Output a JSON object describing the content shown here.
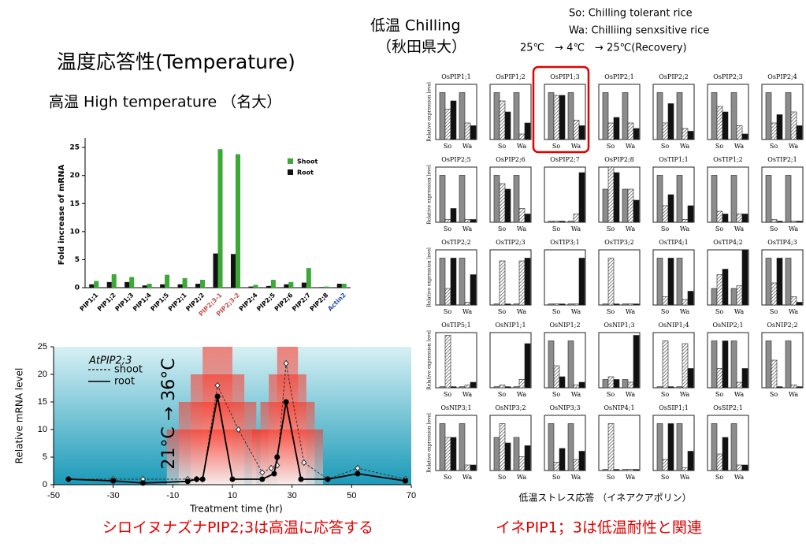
{
  "slide": {
    "title": "温度応答性(Temperature)",
    "subtitle": "高温 High temperature （名大）",
    "left_caption": "シロイヌナズナPIP2;3は高温に応答する",
    "right_caption": "イネPIP1；3は低温耐性と関連",
    "chilling": "低温 Chilling",
    "chilling_source": "（秋田県大）",
    "so_note": "So:  Chilling tolerant rice",
    "wa_note": "Wa:  Chilliing senxsitive rice",
    "treatment": "25℃　→ 4℃　→ 25℃(Recovery)"
  },
  "chart_data": [
    {
      "type": "bar",
      "y_label": "Fold increase of mRNA",
      "categories": [
        "PIP1;1",
        "PIP1;2",
        "PIP1;3",
        "PIP1;4",
        "PIP1;5",
        "PIP2;1",
        "PIP2;2",
        "PIP2;3-1",
        "PIP2;3-2",
        "PIP2;4",
        "PIP2;5",
        "PIP2;6",
        "PIP2;7",
        "PIP2;8",
        "Actin2"
      ],
      "category_colors": [
        "#000",
        "#000",
        "#000",
        "#000",
        "#000",
        "#000",
        "#000",
        "#c0504d",
        "#c0504d",
        "#000",
        "#000",
        "#000",
        "#000",
        "#000",
        "#1f4ea8"
      ],
      "series": [
        {
          "name": "Shoot",
          "color": "#3aa935",
          "values": [
            1.2,
            2.4,
            1.9,
            0.7,
            2.3,
            1.7,
            1.4,
            24.7,
            23.8,
            0.5,
            1.4,
            1.0,
            3.5,
            0.2,
            0.7
          ]
        },
        {
          "name": "Root",
          "color": "#111111",
          "values": [
            0.6,
            1.0,
            1.0,
            0.4,
            0.6,
            0.6,
            0.7,
            6.1,
            6.0,
            0.2,
            0.3,
            0.6,
            0.9,
            0.1,
            0.7
          ]
        }
      ],
      "ylim": [
        0,
        26
      ],
      "yticks": [
        0,
        5,
        10,
        15,
        20,
        25
      ]
    },
    {
      "type": "line",
      "x_label": "Treatment time (hr)",
      "y_label": "Relative mRNA level",
      "legend_title": "AtPIP2;3",
      "annotation": "21°C → 36°C",
      "heat_intervals": [
        [
          0,
          10
        ],
        [
          25,
          32
        ]
      ],
      "series": [
        {
          "name": "shoot",
          "color": "#333333",
          "dash": true,
          "marker": "diamond",
          "x": [
            -45,
            -30,
            -20,
            -5,
            -2,
            0,
            5,
            12,
            20,
            23,
            25,
            28,
            34,
            42,
            52,
            68
          ],
          "values": [
            1,
            1,
            1,
            1,
            1,
            1,
            18,
            10,
            2.2,
            3,
            3.5,
            22,
            4,
            1,
            3,
            1
          ]
        },
        {
          "name": "root",
          "color": "#000000",
          "dash": false,
          "marker": "circle",
          "x": [
            -45,
            -30,
            -20,
            -5,
            -2,
            0,
            5,
            10,
            20,
            24,
            25,
            28,
            33,
            42,
            52,
            68
          ],
          "values": [
            1,
            0.7,
            0.3,
            0.6,
            1,
            1,
            16,
            1,
            1,
            2,
            5,
            15,
            1,
            1,
            2,
            0.7
          ]
        }
      ],
      "xlim": [
        -50,
        70
      ],
      "xticks": [
        -50,
        -30,
        -10,
        10,
        30,
        50,
        70
      ],
      "ylim": [
        0,
        25
      ],
      "yticks": [
        0,
        5,
        10,
        15,
        20,
        25
      ]
    },
    {
      "type": "small-multiples",
      "caption": "低温ストレス応答 （イネアクアポリン）",
      "y_label": "Relative expression level",
      "groups": [
        "So",
        "Wa"
      ],
      "colors": [
        "#8c8c8c",
        "hatch",
        "#111111"
      ],
      "ylim": [
        0,
        1
      ],
      "highlight": 2,
      "panels": [
        {
          "title": "OsPIP1;1",
          "values": [
            0.85,
            0.55,
            0.7,
            0.85,
            0.3,
            0.25
          ]
        },
        {
          "title": "OsPIP1;2",
          "values": [
            0.85,
            0.7,
            0.5,
            0.85,
            0.1,
            0.3
          ]
        },
        {
          "title": "OsPIP1;3",
          "values": [
            0.85,
            0.8,
            0.8,
            0.85,
            0.35,
            0.25
          ]
        },
        {
          "title": "OsPIP2;1",
          "values": [
            0.85,
            0.3,
            0.4,
            0.85,
            0.3,
            0.2
          ]
        },
        {
          "title": "OsPIP2;2",
          "values": [
            0.85,
            0.3,
            0.65,
            0.85,
            0.2,
            0.15
          ]
        },
        {
          "title": "OsPIP2;3",
          "values": [
            0.85,
            0.6,
            0.5,
            0.85,
            0.25,
            0.1
          ]
        },
        {
          "title": "OsPIP2;4",
          "values": [
            0.85,
            0.3,
            0.45,
            0.85,
            0.5,
            0.25
          ]
        },
        {
          "title": "OsPIP2;5",
          "values": [
            0.85,
            0.05,
            0.25,
            0.85,
            0.05,
            0.05
          ]
        },
        {
          "title": "OsPIP2;6",
          "values": [
            0.85,
            0.7,
            0.6,
            0.85,
            0.25,
            0.15
          ]
        },
        {
          "title": "OsPIP2;7",
          "values": [
            0.02,
            0.02,
            0.02,
            0.02,
            0.15,
            0.9
          ]
        },
        {
          "title": "OsPIP2;8",
          "values": [
            0.6,
            1.0,
            0.9,
            0.6,
            0.6,
            0.4
          ]
        },
        {
          "title": "OsTIP1;1",
          "values": [
            0.85,
            0.3,
            0.5,
            0.85,
            0.05,
            0.3
          ]
        },
        {
          "title": "OsTIP1;2",
          "values": [
            0.85,
            0.2,
            0.15,
            0.85,
            0.15,
            0.15
          ]
        },
        {
          "title": "OsTIP2;1",
          "values": [
            0.85,
            0.05,
            0.02,
            0.85,
            0.02,
            0.02
          ]
        },
        {
          "title": "OsTIP2;2",
          "values": [
            0.85,
            0.3,
            0.85,
            0.85,
            0.05,
            0.55
          ]
        },
        {
          "title": "OsTIP2;3",
          "values": [
            0.02,
            0.8,
            0.02,
            0.02,
            0.8,
            0.85
          ]
        },
        {
          "title": "OsTIP3;1",
          "values": [
            0.02,
            0.02,
            0.02,
            0.02,
            0.02,
            0.85
          ]
        },
        {
          "title": "OsTIP3;2",
          "values": [
            0.02,
            0.85,
            0.02,
            0.02,
            0.02,
            0.02
          ]
        },
        {
          "title": "OsTIP4;1",
          "values": [
            0.85,
            0.15,
            0.85,
            0.85,
            0.1,
            0.25
          ]
        },
        {
          "title": "OsTIP4;2",
          "values": [
            0.3,
            0.55,
            0.65,
            0.3,
            0.35,
            1.0
          ]
        },
        {
          "title": "OsTIP4;3",
          "values": [
            0.85,
            0.4,
            0.85,
            0.85,
            0.15,
            0.05
          ]
        },
        {
          "title": "OsTIP5;1",
          "values": [
            0.02,
            0.95,
            0.02,
            0.02,
            0.05,
            0.1
          ]
        },
        {
          "title": "OsNIP1;1",
          "values": [
            0.02,
            0.05,
            0.02,
            0.02,
            0.15,
            0.8
          ]
        },
        {
          "title": "OsNIP1;2",
          "values": [
            0.85,
            0.4,
            0.2,
            0.85,
            0.05,
            0.1
          ]
        },
        {
          "title": "OsNIP1;3",
          "values": [
            0.15,
            0.2,
            0.15,
            0.15,
            0.1,
            0.95
          ]
        },
        {
          "title": "OsNIP1;4",
          "values": [
            0.02,
            0.85,
            0.02,
            0.02,
            0.8,
            0.35
          ]
        },
        {
          "title": "OsNIP2;1",
          "values": [
            0.85,
            0.35,
            0.85,
            0.85,
            0.1,
            0.35
          ]
        },
        {
          "title": "OsNIP2;2",
          "values": [
            0.85,
            0.5,
            0.02,
            0.85,
            0.05,
            0.02
          ]
        },
        {
          "title": "OsNIP3;1",
          "values": [
            0.85,
            0.6,
            0.6,
            0.85,
            0.1,
            0.1
          ]
        },
        {
          "title": "OsNIP3;2",
          "values": [
            0.6,
            0.85,
            0.5,
            0.6,
            0.25,
            0.45
          ]
        },
        {
          "title": "OsNIP3;3",
          "values": [
            0.85,
            0.15,
            0.4,
            0.85,
            0.2,
            0.35
          ]
        },
        {
          "title": "OsNIP4;1",
          "values": [
            0.02,
            0.85,
            0.02,
            0.02,
            0.02,
            0.02
          ]
        },
        {
          "title": "OsSIP1;1",
          "values": [
            0.85,
            0.2,
            0.85,
            0.85,
            0.05,
            0.35
          ]
        },
        {
          "title": "OsSIP2;1",
          "values": [
            0.85,
            0.3,
            0.6,
            0.85,
            0.1,
            0.1
          ]
        }
      ]
    }
  ]
}
